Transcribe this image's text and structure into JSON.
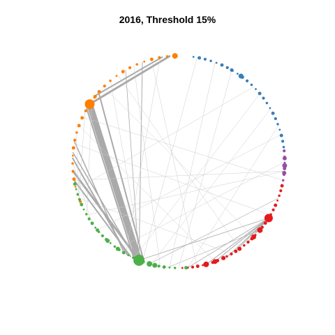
{
  "chart": {
    "title": "2016, Threshold 15%",
    "groups": [
      {
        "name": "orange",
        "color": "#ff7f00",
        "count": 27
      },
      {
        "name": "blue",
        "color": "#377eb8",
        "count": 24
      },
      {
        "name": "purple",
        "color": "#984ea3",
        "count": 6
      },
      {
        "name": "red",
        "color": "#e41a1c",
        "count": 28
      },
      {
        "name": "green",
        "color": "#4daf4a",
        "count": 27
      }
    ],
    "edge_color": "#aaaaaa",
    "thin_edge_color": "#cccccc"
  }
}
